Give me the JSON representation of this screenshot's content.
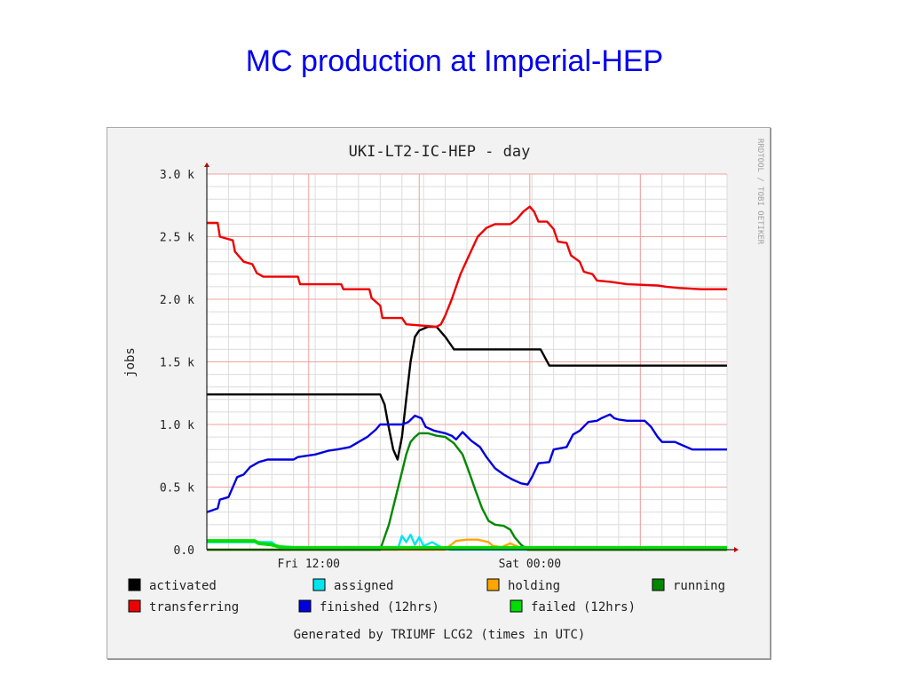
{
  "slide": {
    "title": "MC production at Imperial-HEP"
  },
  "chart_data": {
    "type": "line",
    "title": "UKI-LT2-IC-HEP - day",
    "ylabel": "jobs",
    "xlabel": "",
    "ylim": [
      0,
      3000
    ],
    "xlim": [
      0,
      24
    ],
    "y_ticks": [
      {
        "value": 0,
        "label": "0.0"
      },
      {
        "value": 500,
        "label": "0.5 k"
      },
      {
        "value": 1000,
        "label": "1.0 k"
      },
      {
        "value": 1500,
        "label": "1.5 k"
      },
      {
        "value": 2000,
        "label": "2.0 k"
      },
      {
        "value": 2500,
        "label": "2.5 k"
      },
      {
        "value": 3000,
        "label": "3.0 k"
      }
    ],
    "x_ticks": [
      {
        "value": 4.7,
        "label": "Fri 12:00"
      },
      {
        "value": 14.9,
        "label": "Sat 00:00"
      }
    ],
    "watermark": "RRDTOOL / TOBI OETIKER",
    "footer": "Generated by TRIUMF LCG2 (times in UTC)",
    "grid": true,
    "legend_position": "bottom",
    "series": [
      {
        "name": "activated",
        "color": "#000000",
        "points": [
          [
            0,
            1240
          ],
          [
            4.7,
            1240
          ],
          [
            8,
            1240
          ],
          [
            8.2,
            1160
          ],
          [
            8.4,
            970
          ],
          [
            8.6,
            800
          ],
          [
            8.8,
            720
          ],
          [
            9.0,
            900
          ],
          [
            9.2,
            1200
          ],
          [
            9.4,
            1500
          ],
          [
            9.6,
            1700
          ],
          [
            9.8,
            1750
          ],
          [
            10.2,
            1780
          ],
          [
            10.6,
            1780
          ],
          [
            11.0,
            1700
          ],
          [
            11.4,
            1600
          ],
          [
            13,
            1600
          ],
          [
            15.4,
            1600
          ],
          [
            15.8,
            1470
          ],
          [
            24,
            1470
          ]
        ]
      },
      {
        "name": "assigned",
        "color": "#00e5ee",
        "points": [
          [
            0,
            60
          ],
          [
            3,
            60
          ],
          [
            3.2,
            30
          ],
          [
            4,
            20
          ],
          [
            4.6,
            10
          ],
          [
            5,
            20
          ],
          [
            5.2,
            0
          ],
          [
            8.8,
            0
          ],
          [
            9.0,
            110
          ],
          [
            9.2,
            60
          ],
          [
            9.4,
            120
          ],
          [
            9.6,
            40
          ],
          [
            9.8,
            100
          ],
          [
            10,
            30
          ],
          [
            10.4,
            60
          ],
          [
            10.8,
            20
          ],
          [
            11.2,
            0
          ],
          [
            24,
            0
          ]
        ]
      },
      {
        "name": "holding",
        "color": "#ffa500",
        "points": [
          [
            0,
            0
          ],
          [
            11,
            0
          ],
          [
            11.2,
            30
          ],
          [
            11.5,
            70
          ],
          [
            12,
            80
          ],
          [
            12.5,
            80
          ],
          [
            13,
            60
          ],
          [
            13.2,
            30
          ],
          [
            13.6,
            20
          ],
          [
            14,
            50
          ],
          [
            14.4,
            20
          ],
          [
            14.8,
            0
          ],
          [
            24,
            0
          ]
        ]
      },
      {
        "name": "running",
        "color": "#008800",
        "points": [
          [
            0,
            0
          ],
          [
            8,
            0
          ],
          [
            8.2,
            100
          ],
          [
            8.4,
            200
          ],
          [
            8.6,
            340
          ],
          [
            8.8,
            480
          ],
          [
            9.0,
            620
          ],
          [
            9.2,
            760
          ],
          [
            9.4,
            860
          ],
          [
            9.6,
            900
          ],
          [
            9.8,
            930
          ],
          [
            10.2,
            930
          ],
          [
            10.6,
            910
          ],
          [
            11.0,
            900
          ],
          [
            11.4,
            850
          ],
          [
            11.8,
            760
          ],
          [
            12.1,
            620
          ],
          [
            12.4,
            470
          ],
          [
            12.7,
            330
          ],
          [
            13,
            230
          ],
          [
            13.3,
            200
          ],
          [
            13.7,
            190
          ],
          [
            14.0,
            160
          ],
          [
            14.2,
            100
          ],
          [
            14.5,
            40
          ],
          [
            14.8,
            0
          ],
          [
            24,
            0
          ]
        ]
      },
      {
        "name": "transferring",
        "color": "#ee0000",
        "points": [
          [
            0,
            2610
          ],
          [
            0.5,
            2610
          ],
          [
            0.6,
            2500
          ],
          [
            1.2,
            2470
          ],
          [
            1.3,
            2380
          ],
          [
            1.7,
            2300
          ],
          [
            2.1,
            2280
          ],
          [
            2.3,
            2210
          ],
          [
            2.6,
            2180
          ],
          [
            4.2,
            2180
          ],
          [
            4.3,
            2120
          ],
          [
            6.2,
            2120
          ],
          [
            6.3,
            2080
          ],
          [
            7.5,
            2080
          ],
          [
            7.6,
            2010
          ],
          [
            8.0,
            1950
          ],
          [
            8.1,
            1850
          ],
          [
            9.0,
            1850
          ],
          [
            9.2,
            1800
          ],
          [
            10.6,
            1780
          ],
          [
            10.8,
            1800
          ],
          [
            11.0,
            1870
          ],
          [
            11.3,
            2000
          ],
          [
            11.7,
            2200
          ],
          [
            12.1,
            2350
          ],
          [
            12.5,
            2500
          ],
          [
            12.9,
            2570
          ],
          [
            13.3,
            2600
          ],
          [
            14,
            2600
          ],
          [
            14.3,
            2640
          ],
          [
            14.6,
            2700
          ],
          [
            14.9,
            2740
          ],
          [
            15.1,
            2700
          ],
          [
            15.3,
            2620
          ],
          [
            15.7,
            2620
          ],
          [
            16,
            2560
          ],
          [
            16.2,
            2460
          ],
          [
            16.6,
            2450
          ],
          [
            16.8,
            2350
          ],
          [
            17.2,
            2300
          ],
          [
            17.4,
            2220
          ],
          [
            17.8,
            2200
          ],
          [
            18.0,
            2150
          ],
          [
            18.6,
            2140
          ],
          [
            19.4,
            2120
          ],
          [
            20.8,
            2110
          ],
          [
            21.2,
            2100
          ],
          [
            21.8,
            2090
          ],
          [
            22.8,
            2080
          ],
          [
            24,
            2080
          ]
        ]
      },
      {
        "name": "finished (12hrs)",
        "color": "#0000dd",
        "points": [
          [
            0,
            300
          ],
          [
            0.5,
            330
          ],
          [
            0.6,
            400
          ],
          [
            1.0,
            420
          ],
          [
            1.2,
            500
          ],
          [
            1.4,
            580
          ],
          [
            1.7,
            600
          ],
          [
            2.0,
            660
          ],
          [
            2.4,
            700
          ],
          [
            2.8,
            720
          ],
          [
            4.0,
            720
          ],
          [
            4.2,
            740
          ],
          [
            5.0,
            760
          ],
          [
            5.6,
            790
          ],
          [
            6.0,
            800
          ],
          [
            6.6,
            820
          ],
          [
            7.4,
            900
          ],
          [
            7.8,
            960
          ],
          [
            8.0,
            1000
          ],
          [
            8.6,
            1000
          ],
          [
            9.0,
            1000
          ],
          [
            9.3,
            1020
          ],
          [
            9.6,
            1070
          ],
          [
            9.9,
            1050
          ],
          [
            10.1,
            980
          ],
          [
            10.5,
            950
          ],
          [
            11.0,
            930
          ],
          [
            11.3,
            910
          ],
          [
            11.5,
            880
          ],
          [
            11.8,
            940
          ],
          [
            12.2,
            870
          ],
          [
            12.6,
            820
          ],
          [
            12.9,
            740
          ],
          [
            13.3,
            650
          ],
          [
            13.7,
            600
          ],
          [
            14.1,
            560
          ],
          [
            14.5,
            530
          ],
          [
            14.8,
            520
          ],
          [
            15.0,
            580
          ],
          [
            15.3,
            690
          ],
          [
            15.8,
            700
          ],
          [
            16.0,
            800
          ],
          [
            16.6,
            820
          ],
          [
            16.9,
            920
          ],
          [
            17.2,
            950
          ],
          [
            17.6,
            1020
          ],
          [
            18,
            1030
          ],
          [
            18.2,
            1050
          ],
          [
            18.6,
            1080
          ],
          [
            18.8,
            1050
          ],
          [
            19.0,
            1040
          ],
          [
            19.4,
            1030
          ],
          [
            20.2,
            1030
          ],
          [
            20.5,
            980
          ],
          [
            20.8,
            900
          ],
          [
            21.0,
            860
          ],
          [
            21.6,
            860
          ],
          [
            22.0,
            830
          ],
          [
            22.4,
            800
          ],
          [
            24,
            800
          ]
        ]
      },
      {
        "name": "failed (12hrs)",
        "color": "#00dd00",
        "points": [
          [
            0,
            70
          ],
          [
            2.2,
            70
          ],
          [
            2.4,
            50
          ],
          [
            3.0,
            40
          ],
          [
            3.4,
            20
          ],
          [
            4,
            15
          ],
          [
            5,
            15
          ],
          [
            10,
            15
          ],
          [
            15,
            15
          ],
          [
            24,
            15
          ]
        ]
      }
    ]
  }
}
